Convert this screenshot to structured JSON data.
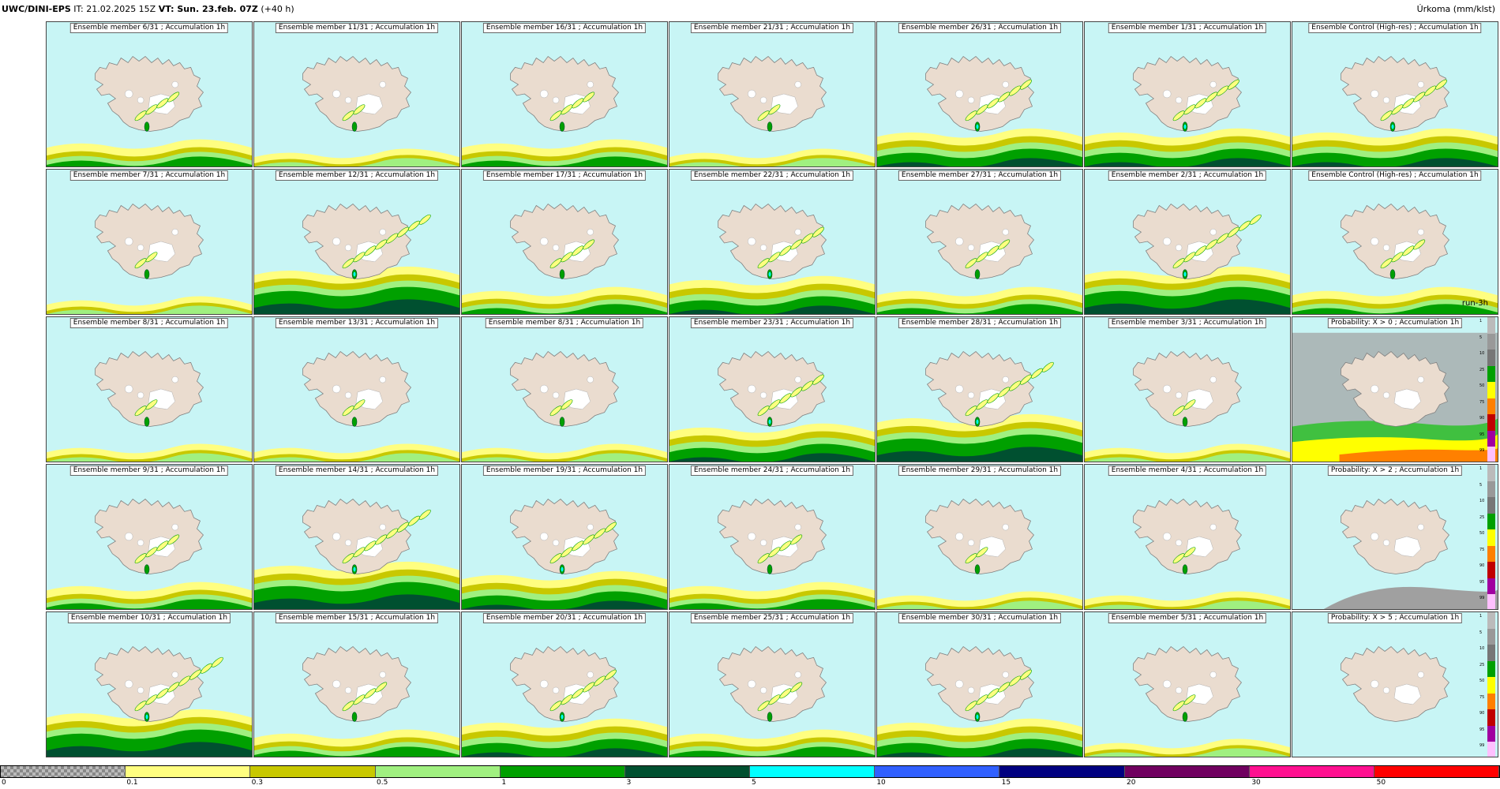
{
  "header": {
    "model": "UWC/DINI-EPS",
    "it_label": "IT: 21.02.2025 15Z",
    "vt_label": "VT: Sun. 23.feb. 07Z",
    "lead": "(+40 h)",
    "variable": "Úrkoma (mm/klst)"
  },
  "colors": {
    "sea": "#c8f5f5",
    "land": "#eadccf",
    "glacier": "#ffffff",
    "precip_0_1": "#fffe80",
    "precip_0_3": "#c8c800",
    "precip_0_5": "#a0f080",
    "precip_1": "#00a000",
    "precip_3": "#005030",
    "precip_5": "#00ffff"
  },
  "panels": [
    {
      "title": "Ensemble member 6/31 ; Accumulation 1h",
      "kind": "member",
      "intensity": 1
    },
    {
      "title": "Ensemble member 11/31 ; Accumulation 1h",
      "kind": "member",
      "intensity": 0
    },
    {
      "title": "Ensemble member 16/31 ; Accumulation 1h",
      "kind": "member",
      "intensity": 1
    },
    {
      "title": "Ensemble member 21/31 ; Accumulation 1h",
      "kind": "member",
      "intensity": 0
    },
    {
      "title": "Ensemble member 26/31 ; Accumulation 1h",
      "kind": "member",
      "intensity": 2
    },
    {
      "title": "Ensemble member 1/31 ; Accumulation 1h",
      "kind": "member",
      "intensity": 2
    },
    {
      "title": "Ensemble Control (High-res) ; Accumulation 1h",
      "kind": "member",
      "intensity": 2
    },
    {
      "title": "Ensemble member 7/31 ; Accumulation 1h",
      "kind": "member",
      "intensity": 0
    },
    {
      "title": "Ensemble member 12/31 ; Accumulation 1h",
      "kind": "member",
      "intensity": 3
    },
    {
      "title": "Ensemble member 17/31 ; Accumulation 1h",
      "kind": "member",
      "intensity": 1
    },
    {
      "title": "Ensemble member 22/31 ; Accumulation 1h",
      "kind": "member",
      "intensity": 2
    },
    {
      "title": "Ensemble member 27/31 ; Accumulation 1h",
      "kind": "member",
      "intensity": 1
    },
    {
      "title": "Ensemble member 2/31 ; Accumulation 1h",
      "kind": "member",
      "intensity": 3
    },
    {
      "title": "Ensemble Control (High-res) ; Accumulation 1h",
      "kind": "member",
      "intensity": 1,
      "note": "run-3h"
    },
    {
      "title": "Ensemble member 8/31 ; Accumulation 1h",
      "kind": "member",
      "intensity": 0
    },
    {
      "title": "Ensemble member 13/31 ; Accumulation 1h",
      "kind": "member",
      "intensity": 0
    },
    {
      "title": "Ensemble member 8/31 ; Accumulation 1h",
      "kind": "member",
      "intensity": 0
    },
    {
      "title": "Ensemble member 23/31 ; Accumulation 1h",
      "kind": "member",
      "intensity": 2
    },
    {
      "title": "Ensemble member 28/31 ; Accumulation 1h",
      "kind": "member",
      "intensity": 3
    },
    {
      "title": "Ensemble member 3/31 ; Accumulation 1h",
      "kind": "member",
      "intensity": 0
    },
    {
      "title": "Probability: X > 0 ; Accumulation 1h",
      "kind": "prob",
      "intensity": 3
    },
    {
      "title": "Ensemble member 9/31 ; Accumulation 1h",
      "kind": "member",
      "intensity": 1
    },
    {
      "title": "Ensemble member 14/31 ; Accumulation 1h",
      "kind": "member",
      "intensity": 3
    },
    {
      "title": "Ensemble member 19/31 ; Accumulation 1h",
      "kind": "member",
      "intensity": 2
    },
    {
      "title": "Ensemble member 24/31 ; Accumulation 1h",
      "kind": "member",
      "intensity": 1
    },
    {
      "title": "Ensemble member 29/31 ; Accumulation 1h",
      "kind": "member",
      "intensity": 0
    },
    {
      "title": "Ensemble member 4/31 ; Accumulation 1h",
      "kind": "member",
      "intensity": 0
    },
    {
      "title": "Probability: X > 2 ; Accumulation 1h",
      "kind": "prob",
      "intensity": 1
    },
    {
      "title": "Ensemble member 10/31 ; Accumulation 1h",
      "kind": "member",
      "intensity": 3
    },
    {
      "title": "Ensemble member 15/31 ; Accumulation 1h",
      "kind": "member",
      "intensity": 1
    },
    {
      "title": "Ensemble member 20/31 ; Accumulation 1h",
      "kind": "member",
      "intensity": 2
    },
    {
      "title": "Ensemble member 25/31 ; Accumulation 1h",
      "kind": "member",
      "intensity": 1
    },
    {
      "title": "Ensemble member 30/31 ; Accumulation 1h",
      "kind": "member",
      "intensity": 2
    },
    {
      "title": "Ensemble member 5/31 ; Accumulation 1h",
      "kind": "member",
      "intensity": 0
    },
    {
      "title": "Probability: X > 5 ; Accumulation 1h",
      "kind": "prob",
      "intensity": 0
    }
  ],
  "prob_scale": {
    "labels": [
      "1",
      "5",
      "10",
      "25",
      "50",
      "75",
      "90",
      "95",
      "99"
    ],
    "colors": [
      "#bbbbbb",
      "#999999",
      "#777777",
      "#00a000",
      "#ffff00",
      "#ff8000",
      "#c00000",
      "#a000a0",
      "#ffc0ff"
    ]
  },
  "legend": {
    "labels": [
      "0",
      "0.1",
      "0.3",
      "0.5",
      "1",
      "3",
      "5",
      "10",
      "15",
      "20",
      "30",
      "50"
    ],
    "colors": [
      "checker",
      "#fffe80",
      "#c8c800",
      "#a0f080",
      "#00a000",
      "#005030",
      "#00ffff",
      "#3060ff",
      "#000080",
      "#700060",
      "#ff1090",
      "#ff0000"
    ]
  }
}
